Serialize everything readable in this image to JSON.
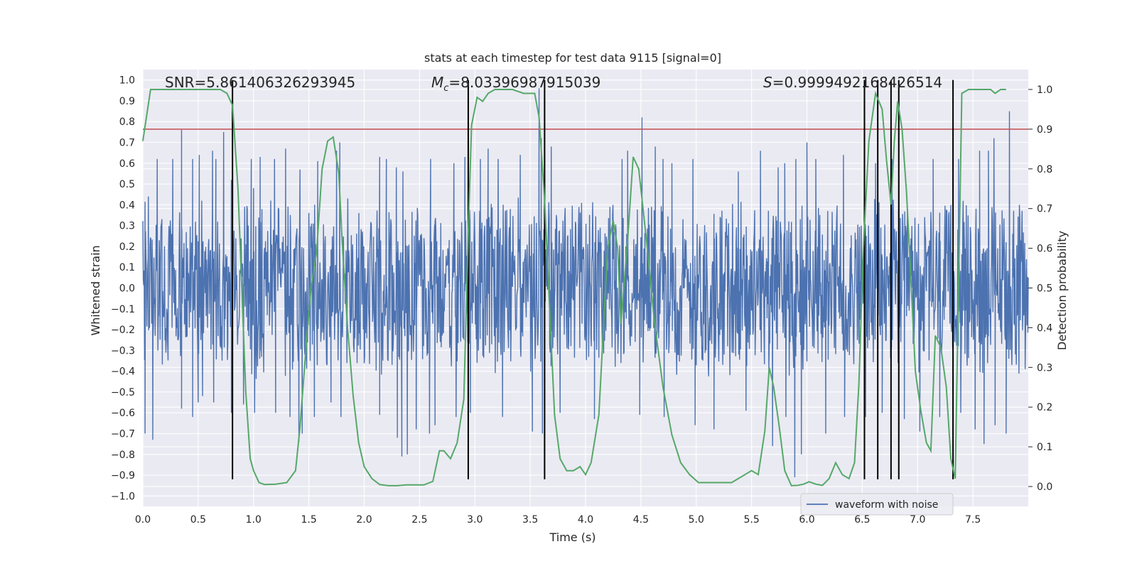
{
  "chart_data": {
    "type": "line",
    "title": "stats at each timestep for test data 9115 [signal=0]",
    "xlabel": "Time (s)",
    "ylabel": "Whitened strain",
    "y2label": "Detection probability",
    "xlim": [
      0.0,
      8.0
    ],
    "ylim": [
      -1.05,
      1.05
    ],
    "y2lim": [
      -0.05,
      1.05
    ],
    "xticks": [
      0.0,
      0.5,
      1.0,
      1.5,
      2.0,
      2.5,
      3.0,
      3.5,
      4.0,
      4.5,
      5.0,
      5.5,
      6.0,
      6.5,
      7.0,
      7.5
    ],
    "xtick_labels": [
      "0.0",
      "0.5",
      "1.0",
      "1.5",
      "2.0",
      "2.5",
      "3.0",
      "3.5",
      "4.0",
      "4.5",
      "5.0",
      "5.5",
      "6.0",
      "6.5",
      "7.0",
      "7.5"
    ],
    "yticks": [
      -1.0,
      -0.9,
      -0.8,
      -0.7,
      -0.6,
      -0.5,
      -0.4,
      -0.3,
      -0.2,
      -0.1,
      0.0,
      0.1,
      0.2,
      0.3,
      0.4,
      0.5,
      0.6,
      0.7,
      0.8,
      0.9,
      1.0
    ],
    "ytick_labels": [
      "−1.0",
      "−0.9",
      "−0.8",
      "−0.7",
      "−0.6",
      "−0.5",
      "−0.4",
      "−0.3",
      "−0.2",
      "−0.1",
      "0.0",
      "0.1",
      "0.2",
      "0.3",
      "0.4",
      "0.5",
      "0.6",
      "0.7",
      "0.8",
      "0.9",
      "1.0"
    ],
    "y2ticks": [
      0.0,
      0.1,
      0.2,
      0.3,
      0.4,
      0.5,
      0.6,
      0.7,
      0.8,
      0.9,
      1.0
    ],
    "y2tick_labels": [
      "0.0",
      "0.1",
      "0.2",
      "0.3",
      "0.4",
      "0.5",
      "0.6",
      "0.7",
      "0.8",
      "0.9",
      "1.0"
    ],
    "grid": true,
    "legend": {
      "placement": "lower-right",
      "entries": [
        "waveform with noise"
      ]
    },
    "annotations": {
      "snr": "SNR=5.861406326293945",
      "mc_symbol": "M",
      "mc_subscript": "c",
      "mc_value": "=8.03396987915039",
      "s_symbol": "S",
      "s_value": "=0.9999492168426514"
    },
    "threshold_line": {
      "axis": "y2",
      "value": 0.9,
      "color": "#c44e52"
    },
    "vertical_lines": {
      "x": [
        0.81,
        2.94,
        3.63,
        6.52,
        6.64,
        6.76,
        6.83,
        7.32
      ],
      "y_range": [
        -0.92,
        1.0
      ],
      "color": "#000000"
    },
    "series": [
      {
        "name": "waveform with noise",
        "axis": "y",
        "color": "#4c72b0",
        "envelope_description": "dense noisy strain; band mostly within ±0.45 with spikes to about ±0.85",
        "peak_x": [
          0.05,
          0.13,
          0.27,
          0.35,
          0.45,
          0.51,
          0.63,
          0.66,
          0.73,
          0.8,
          0.98,
          1.0,
          1.06,
          1.19,
          1.29,
          1.42,
          1.58,
          1.75,
          1.78,
          2.14,
          2.2,
          2.29,
          2.35,
          2.6,
          2.81,
          2.91,
          3.05,
          3.12,
          3.21,
          3.41,
          3.58,
          3.6,
          3.69,
          4.33,
          4.38,
          4.51,
          4.63,
          4.7,
          4.78,
          4.97,
          5.38,
          5.58,
          5.74,
          5.8,
          5.9,
          6.0,
          6.08,
          6.33,
          6.52,
          6.62,
          6.77,
          6.83,
          7.14,
          7.37,
          7.56,
          7.64,
          7.69,
          7.83
        ],
        "peak_y": [
          0.44,
          0.62,
          0.62,
          0.76,
          0.62,
          0.64,
          0.66,
          0.62,
          0.75,
          0.52,
          0.62,
          0.48,
          0.63,
          0.62,
          0.67,
          0.57,
          0.61,
          0.66,
          0.7,
          0.63,
          0.62,
          0.58,
          0.56,
          0.62,
          0.6,
          0.63,
          0.62,
          0.67,
          0.62,
          0.64,
          0.96,
          0.72,
          0.68,
          0.62,
          0.66,
          0.82,
          0.68,
          0.62,
          0.6,
          0.62,
          0.56,
          0.66,
          0.58,
          0.6,
          0.62,
          0.7,
          0.62,
          0.64,
          0.72,
          0.6,
          0.62,
          0.62,
          0.62,
          0.62,
          0.66,
          0.66,
          0.72,
          0.85
        ],
        "trough_x": [
          0.02,
          0.09,
          0.35,
          0.45,
          0.5,
          0.54,
          0.64,
          0.8,
          0.91,
          1.01,
          1.2,
          1.33,
          1.41,
          1.44,
          1.55,
          1.7,
          1.79,
          2.14,
          2.3,
          2.34,
          2.39,
          2.47,
          2.59,
          2.64,
          2.83,
          2.96,
          3.25,
          3.52,
          3.61,
          3.63,
          3.77,
          4.08,
          4.49,
          4.71,
          4.99,
          5.16,
          5.45,
          5.69,
          5.81,
          5.89,
          5.95,
          6.17,
          6.34,
          6.53,
          6.68,
          6.88,
          7.02,
          7.2,
          7.39,
          7.52,
          7.6,
          7.7,
          7.8
        ],
        "trough_y": [
          -0.7,
          -0.73,
          -0.58,
          -0.62,
          -0.55,
          -0.52,
          -0.55,
          -0.6,
          -0.56,
          -0.6,
          -0.6,
          -0.62,
          -0.74,
          -0.7,
          -0.62,
          -0.55,
          -0.62,
          -0.61,
          -0.72,
          -0.81,
          -0.8,
          -0.68,
          -0.7,
          -0.66,
          -0.62,
          -0.6,
          -0.62,
          -0.69,
          -0.7,
          -0.67,
          -0.6,
          -0.63,
          -0.61,
          -0.62,
          -0.66,
          -0.68,
          -0.59,
          -0.76,
          -0.62,
          -0.91,
          -0.8,
          -0.7,
          -0.62,
          -0.62,
          -0.6,
          -0.63,
          -0.69,
          -0.62,
          -0.6,
          -0.68,
          -0.75,
          -0.66,
          -0.7
        ]
      },
      {
        "name": "",
        "axis": "y2",
        "color": "#55a868",
        "x": [
          0.0,
          0.07,
          0.14,
          0.21,
          0.28,
          0.35,
          0.42,
          0.49,
          0.56,
          0.63,
          0.7,
          0.76,
          0.81,
          0.86,
          0.93,
          0.97,
          1.0,
          1.05,
          1.1,
          1.2,
          1.3,
          1.38,
          1.42,
          1.48,
          1.52,
          1.57,
          1.62,
          1.67,
          1.72,
          1.77,
          1.8,
          1.85,
          1.9,
          1.95,
          2.0,
          2.07,
          2.14,
          2.22,
          2.3,
          2.38,
          2.46,
          2.54,
          2.62,
          2.68,
          2.72,
          2.78,
          2.84,
          2.9,
          2.94,
          2.97,
          3.02,
          3.07,
          3.12,
          3.18,
          3.24,
          3.34,
          3.44,
          3.54,
          3.58,
          3.63,
          3.68,
          3.72,
          3.77,
          3.83,
          3.89,
          3.95,
          4.0,
          4.05,
          4.12,
          4.2,
          4.25,
          4.29,
          4.32,
          4.38,
          4.43,
          4.48,
          4.55,
          4.62,
          4.7,
          4.78,
          4.86,
          4.94,
          5.02,
          5.12,
          5.22,
          5.32,
          5.38,
          5.44,
          5.5,
          5.56,
          5.62,
          5.66,
          5.7,
          5.75,
          5.8,
          5.86,
          5.92,
          5.97,
          6.02,
          6.08,
          6.14,
          6.2,
          6.26,
          6.32,
          6.38,
          6.43,
          6.47,
          6.51,
          6.56,
          6.62,
          6.68,
          6.72,
          6.76,
          6.79,
          6.82,
          6.86,
          6.9,
          6.94,
          6.98,
          7.03,
          7.08,
          7.12,
          7.16,
          7.21,
          7.26,
          7.3,
          7.34,
          7.4,
          7.46,
          7.52,
          7.58,
          7.62,
          7.66,
          7.7,
          7.75,
          7.8
        ],
        "y": [
          0.87,
          1.0,
          1.0,
          1.0,
          1.0,
          1.0,
          1.0,
          1.0,
          1.0,
          1.0,
          1.0,
          0.99,
          0.96,
          0.75,
          0.24,
          0.07,
          0.04,
          0.01,
          0.005,
          0.006,
          0.01,
          0.04,
          0.15,
          0.37,
          0.5,
          0.59,
          0.8,
          0.87,
          0.88,
          0.79,
          0.62,
          0.4,
          0.23,
          0.11,
          0.05,
          0.02,
          0.005,
          0.002,
          0.002,
          0.004,
          0.004,
          0.004,
          0.013,
          0.09,
          0.09,
          0.07,
          0.11,
          0.22,
          0.64,
          0.91,
          0.98,
          0.97,
          0.99,
          1.0,
          1.0,
          1.0,
          0.99,
          0.99,
          0.93,
          0.72,
          0.42,
          0.18,
          0.07,
          0.04,
          0.04,
          0.05,
          0.03,
          0.06,
          0.18,
          0.6,
          0.67,
          0.6,
          0.41,
          0.62,
          0.83,
          0.8,
          0.62,
          0.42,
          0.25,
          0.13,
          0.06,
          0.03,
          0.01,
          0.01,
          0.01,
          0.01,
          0.02,
          0.03,
          0.04,
          0.03,
          0.14,
          0.3,
          0.25,
          0.15,
          0.04,
          0.002,
          0.003,
          0.006,
          0.012,
          0.006,
          0.003,
          0.02,
          0.06,
          0.03,
          0.02,
          0.06,
          0.26,
          0.6,
          0.87,
          0.99,
          0.95,
          0.82,
          0.71,
          0.87,
          0.97,
          0.9,
          0.74,
          0.52,
          0.29,
          0.19,
          0.11,
          0.09,
          0.38,
          0.35,
          0.25,
          0.07,
          0.02,
          0.99,
          1.0,
          1.0,
          1.0,
          1.0,
          1.0,
          0.99,
          1.0,
          1.0
        ]
      }
    ]
  }
}
